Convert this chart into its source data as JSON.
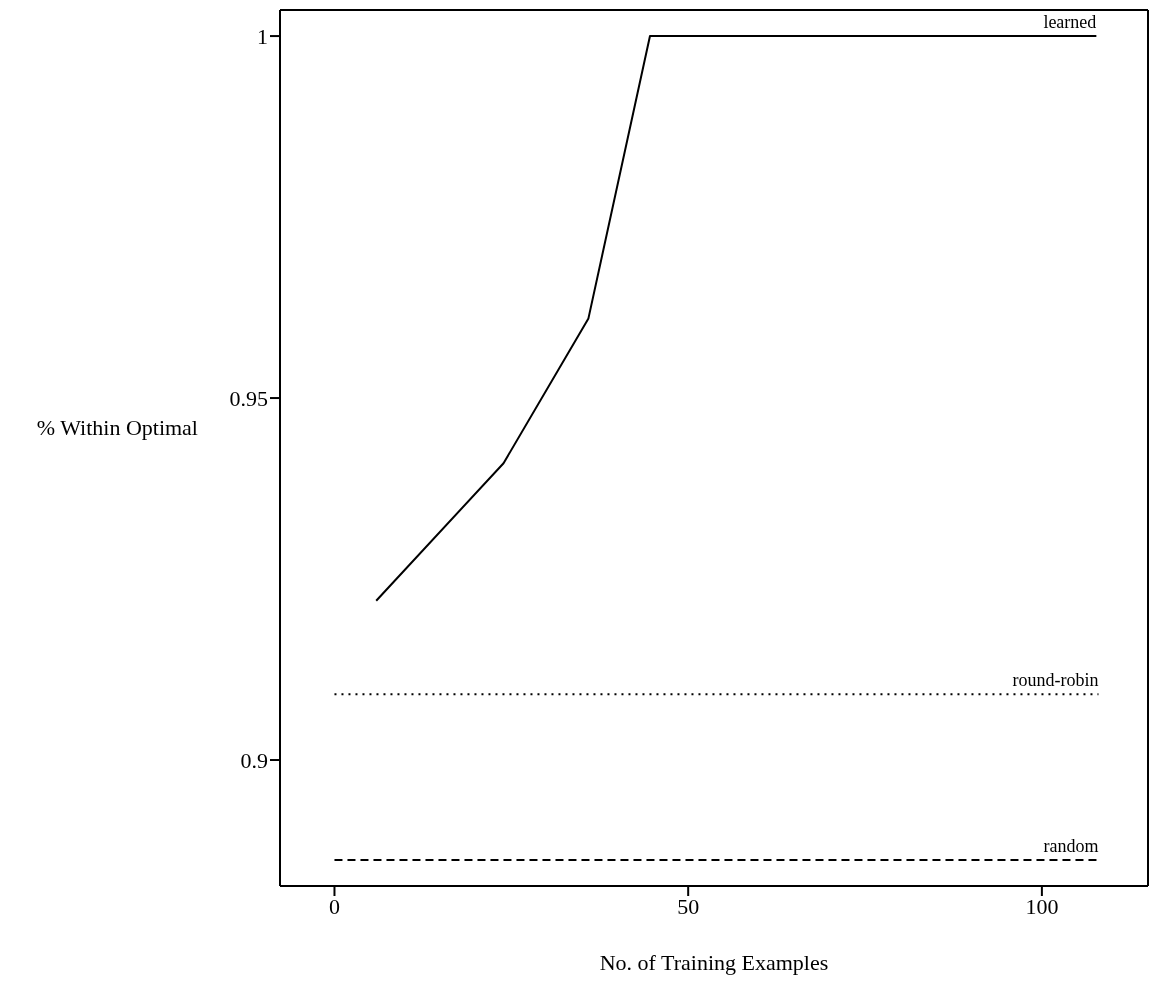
{
  "chart_data": {
    "type": "line",
    "xlabel": "No. of Training Examples",
    "ylabel": "% Within Optimal",
    "xlim": [
      -7.7,
      115
    ],
    "ylim": [
      0.8826,
      1.0036
    ],
    "xticks": [
      0,
      50,
      100
    ],
    "yticks": [
      0.9,
      0.95,
      1
    ],
    "grid": false,
    "legend": false,
    "marker": "none",
    "series": [
      {
        "name": "learned",
        "color": "#000000",
        "line_style": "solid",
        "x": [
          5.9,
          23.9,
          35.9,
          44.6,
          107.7
        ],
        "values": [
          0.922,
          0.941,
          0.961,
          1.0,
          1.0
        ]
      },
      {
        "name": "round-robin",
        "color": "#000000",
        "line_style": "dotted",
        "x": [
          0,
          108
        ],
        "values": [
          0.9091,
          0.9091
        ]
      },
      {
        "name": "random",
        "color": "#000000",
        "line_style": "dashed",
        "x": [
          0,
          108
        ],
        "values": [
          0.8862,
          0.8862
        ]
      }
    ]
  }
}
